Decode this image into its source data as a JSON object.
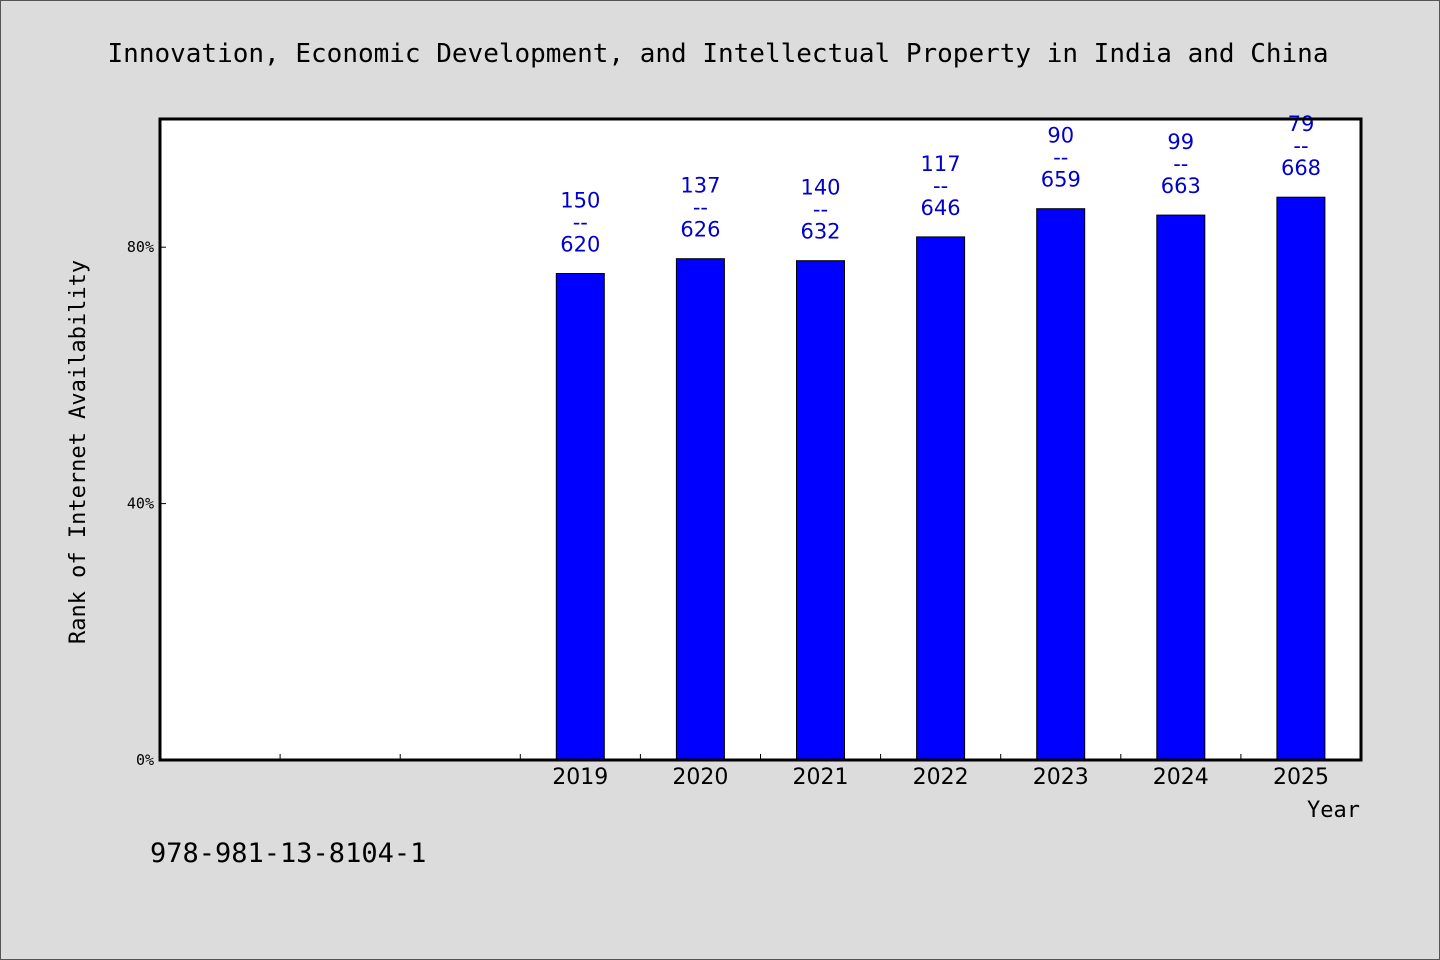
{
  "chart_data": {
    "type": "bar",
    "title": "Innovation, Economic Development, and Intellectual Property in India and China",
    "xlabel": "Year",
    "ylabel": "Rank of Internet Availability",
    "categories": [
      "",
      "",
      "",
      "2019",
      "2020",
      "2021",
      "2022",
      "2023",
      "2024",
      "2025"
    ],
    "values": [
      null,
      null,
      null,
      75.9,
      78.2,
      77.9,
      81.6,
      86.0,
      85.0,
      87.8
    ],
    "data_labels": [
      null,
      null,
      null,
      {
        "top": "150",
        "mid": "--",
        "bottom": "620"
      },
      {
        "top": "137",
        "mid": "--",
        "bottom": "626"
      },
      {
        "top": "140",
        "mid": "--",
        "bottom": "632"
      },
      {
        "top": "117",
        "mid": "--",
        "bottom": "646"
      },
      {
        "top": "90",
        "mid": "--",
        "bottom": "659"
      },
      {
        "top": "99",
        "mid": "--",
        "bottom": "663"
      },
      {
        "top": "79",
        "mid": "--",
        "bottom": "668"
      }
    ],
    "ylim": [
      0,
      100
    ],
    "yticks": [
      0,
      40,
      80
    ],
    "ytick_labels": [
      "0%",
      "40%",
      "80%"
    ],
    "grid": false,
    "colors": {
      "bar": "#0000ff",
      "label": "#0000cc",
      "background": "#dcdcdc",
      "plot_background": "#ffffff"
    }
  },
  "footer": {
    "text": "978-981-13-8104-1"
  }
}
